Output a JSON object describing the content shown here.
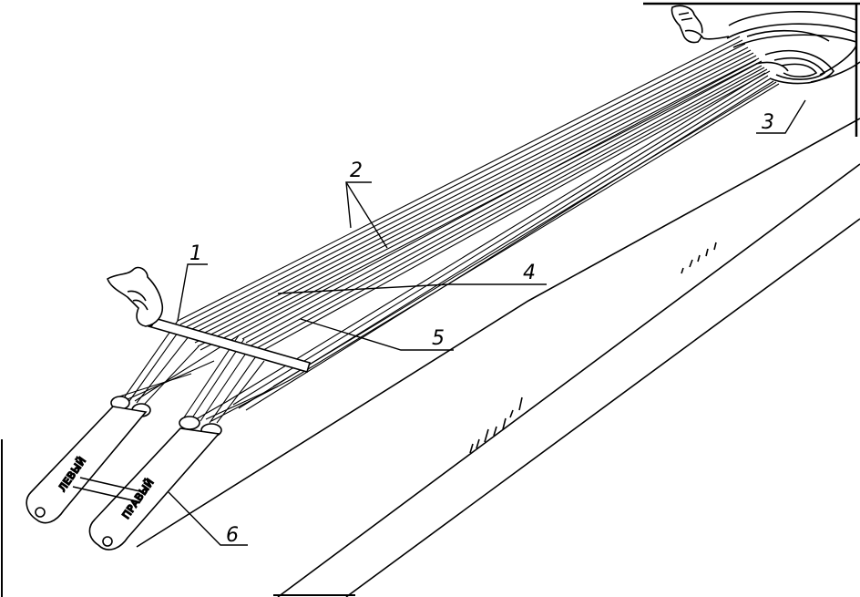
{
  "labels": {
    "l1": "1",
    "l2": "2",
    "l3": "3",
    "l4": "4",
    "l5": "5",
    "l6": "6"
  },
  "riser_text": {
    "left": "ЛЕВЫЙ",
    "right": "ПРАВЫЙ"
  }
}
